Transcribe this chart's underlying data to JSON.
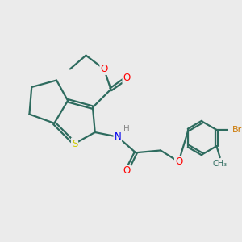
{
  "background_color": "#ebebeb",
  "bond_color": "#2d6b5e",
  "bond_width": 1.6,
  "dbo": 0.06,
  "atom_colors": {
    "O": "#ff0000",
    "S": "#cccc00",
    "N": "#0000ee",
    "Br": "#cc7700",
    "H": "#888888",
    "C": "#2d6b5e"
  },
  "fs": 8.5
}
